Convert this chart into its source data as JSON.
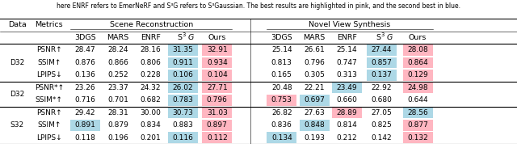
{
  "caption": "here ENRF refers to EmerNeRF and S³G refers to S³Gaussian. The best results are highlighted in pink, and the second best in blue.",
  "sections": [
    {
      "row_label": "D32",
      "rows": [
        {
          "metric": "PSNR↑",
          "scene": [
            "28.47",
            "28.24",
            "28.16",
            "31.35",
            "32.91"
          ],
          "novel": [
            "25.14",
            "26.61",
            "25.14",
            "27.44",
            "28.08"
          ],
          "scene_best": [
            4
          ],
          "scene_second": [
            3
          ],
          "novel_best": [
            4
          ],
          "novel_second": [
            3
          ]
        },
        {
          "metric": "SSIM↑",
          "scene": [
            "0.876",
            "0.866",
            "0.806",
            "0.911",
            "0.934"
          ],
          "novel": [
            "0.813",
            "0.796",
            "0.747",
            "0.857",
            "0.864"
          ],
          "scene_best": [
            4
          ],
          "scene_second": [
            3
          ],
          "novel_best": [
            4
          ],
          "novel_second": [
            3
          ]
        },
        {
          "metric": "LPIPS↓",
          "scene": [
            "0.136",
            "0.252",
            "0.228",
            "0.106",
            "0.104"
          ],
          "novel": [
            "0.165",
            "0.305",
            "0.313",
            "0.137",
            "0.129"
          ],
          "scene_best": [
            4
          ],
          "scene_second": [
            3
          ],
          "novel_best": [
            4
          ],
          "novel_second": [
            3
          ]
        }
      ]
    },
    {
      "row_label": "D32",
      "rows": [
        {
          "metric": "PSNR*↑",
          "scene": [
            "23.26",
            "23.37",
            "24.32",
            "26.02",
            "27.71"
          ],
          "novel": [
            "20.48",
            "22.21",
            "23.49",
            "22.92",
            "24.98"
          ],
          "scene_best": [
            4
          ],
          "scene_second": [
            3
          ],
          "novel_best": [
            4
          ],
          "novel_second": [
            2
          ]
        },
        {
          "metric": "SSIM*↑",
          "scene": [
            "0.716",
            "0.701",
            "0.682",
            "0.783",
            "0.796"
          ],
          "novel": [
            "0.753",
            "0.697",
            "0.660",
            "0.680",
            "0.644"
          ],
          "scene_best": [
            4
          ],
          "scene_second": [
            3
          ],
          "novel_best": [
            0
          ],
          "novel_second": [
            1
          ]
        }
      ]
    },
    {
      "row_label": "S32",
      "rows": [
        {
          "metric": "PSNR↑",
          "scene": [
            "29.42",
            "28.31",
            "30.00",
            "30.73",
            "31.03"
          ],
          "novel": [
            "26.82",
            "27.63",
            "28.89",
            "27.05",
            "28.56"
          ],
          "scene_best": [
            4
          ],
          "scene_second": [
            3
          ],
          "novel_best": [
            2
          ],
          "novel_second": [
            4
          ]
        },
        {
          "metric": "SSIM↑",
          "scene": [
            "0.891",
            "0.879",
            "0.834",
            "0.883",
            "0.897"
          ],
          "novel": [
            "0.836",
            "0.848",
            "0.814",
            "0.825",
            "0.877"
          ],
          "scene_best": [
            4
          ],
          "scene_second": [
            0
          ],
          "novel_best": [
            4
          ],
          "novel_second": [
            1
          ]
        },
        {
          "metric": "LPIPS↓",
          "scene": [
            "0.118",
            "0.196",
            "0.201",
            "0.116",
            "0.112"
          ],
          "novel": [
            "0.134",
            "0.193",
            "0.212",
            "0.142",
            "0.132"
          ],
          "scene_best": [
            4
          ],
          "scene_second": [
            3
          ],
          "novel_best": [
            4
          ],
          "novel_second": [
            0
          ]
        }
      ]
    }
  ],
  "pink": "#FFB6C1",
  "blue": "#ADD8E6",
  "col_names": [
    "3DGS",
    "MARS",
    "ENRF",
    "S³G",
    "Ours"
  ],
  "figsize": [
    6.4,
    1.78
  ],
  "dpi": 100
}
